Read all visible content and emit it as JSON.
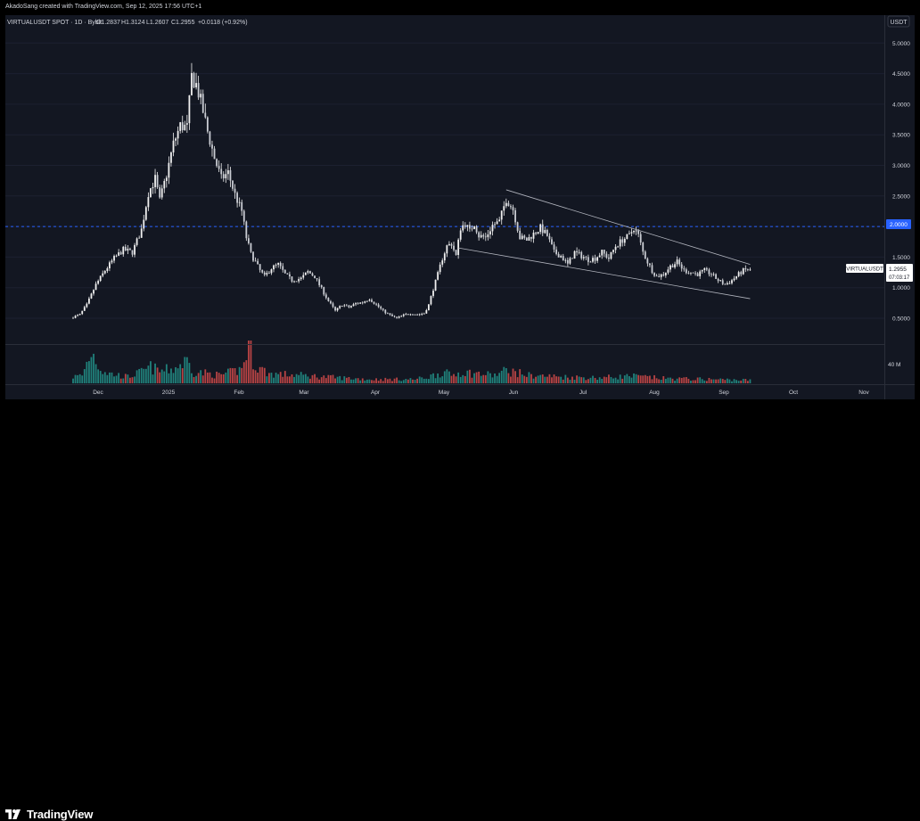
{
  "header": {
    "credit": "AkadoSang created with TradingView.com, Sep 12, 2025 17:56 UTC+1"
  },
  "footer": {
    "brand": "TradingView"
  },
  "chart_data": {
    "type": "candlestick",
    "symbol_line": "VIRTUALUSDT SPOT · 1D · Bybit",
    "ohlc": {
      "open": "O1.2837",
      "high": "H1.3124",
      "low": "L1.2607",
      "close": "C1.2955",
      "change": "+0.0118 (+0.92%)"
    },
    "currency": "USDT",
    "y_ticks": [
      "5.0000",
      "4.5000",
      "4.0000",
      "3.5000",
      "3.0000",
      "2.5000",
      "2.0000",
      "1.5000",
      "1.0000",
      "0.5000"
    ],
    "ylim": [
      0.3,
      5.3
    ],
    "x_ticks": [
      "Dec",
      "2025",
      "Feb",
      "Mar",
      "Apr",
      "May",
      "Jun",
      "Jul",
      "Aug",
      "Sep",
      "Oct",
      "Nov"
    ],
    "volume_tick": "40 M",
    "horizontal_level": {
      "value": 2.0,
      "label": "2.0000"
    },
    "last_price": {
      "symbol": "VIRTUALUSDT",
      "price": "1.2955",
      "countdown": "07:03:17"
    },
    "price_path": [
      [
        0,
        0.52
      ],
      [
        3,
        0.56
      ],
      [
        6,
        0.72
      ],
      [
        10,
        1.05
      ],
      [
        14,
        1.28
      ],
      [
        18,
        1.48
      ],
      [
        22,
        1.62
      ],
      [
        26,
        1.58
      ],
      [
        30,
        1.95
      ],
      [
        33,
        2.55
      ],
      [
        36,
        2.78
      ],
      [
        38,
        2.42
      ],
      [
        41,
        2.85
      ],
      [
        44,
        3.35
      ],
      [
        47,
        3.65
      ],
      [
        50,
        3.62
      ],
      [
        52,
        4.45
      ],
      [
        54,
        4.32
      ],
      [
        56,
        4.05
      ],
      [
        59,
        3.55
      ],
      [
        62,
        3.12
      ],
      [
        65,
        2.78
      ],
      [
        68,
        2.88
      ],
      [
        71,
        2.52
      ],
      [
        74,
        2.25
      ],
      [
        76,
        1.82
      ],
      [
        78,
        1.55
      ],
      [
        80,
        1.42
      ],
      [
        82,
        1.28
      ],
      [
        84,
        1.18
      ],
      [
        87,
        1.32
      ],
      [
        90,
        1.38
      ],
      [
        93,
        1.22
      ],
      [
        96,
        1.12
      ],
      [
        100,
        1.15
      ],
      [
        103,
        1.26
      ],
      [
        106,
        1.18
      ],
      [
        109,
        0.98
      ],
      [
        112,
        0.78
      ],
      [
        115,
        0.62
      ],
      [
        118,
        0.72
      ],
      [
        121,
        0.68
      ],
      [
        124,
        0.74
      ],
      [
        127,
        0.76
      ],
      [
        130,
        0.82
      ],
      [
        133,
        0.72
      ],
      [
        136,
        0.62
      ],
      [
        139,
        0.55
      ],
      [
        142,
        0.5
      ],
      [
        145,
        0.55
      ],
      [
        148,
        0.58
      ],
      [
        151,
        0.56
      ],
      [
        154,
        0.58
      ],
      [
        156,
        0.72
      ],
      [
        158,
        0.98
      ],
      [
        160,
        1.22
      ],
      [
        162,
        1.48
      ],
      [
        164,
        1.68
      ],
      [
        166,
        1.72
      ],
      [
        168,
        1.52
      ],
      [
        170,
        1.98
      ],
      [
        172,
        2.05
      ],
      [
        174,
        1.92
      ],
      [
        176,
        2.05
      ],
      [
        178,
        1.85
      ],
      [
        181,
        1.82
      ],
      [
        184,
        2.02
      ],
      [
        187,
        2.08
      ],
      [
        190,
        2.45
      ],
      [
        193,
        2.28
      ],
      [
        196,
        1.82
      ],
      [
        199,
        1.78
      ],
      [
        202,
        1.88
      ],
      [
        205,
        1.98
      ],
      [
        208,
        1.85
      ],
      [
        211,
        1.58
      ],
      [
        214,
        1.52
      ],
      [
        217,
        1.38
      ],
      [
        220,
        1.58
      ],
      [
        223,
        1.52
      ],
      [
        226,
        1.46
      ],
      [
        229,
        1.48
      ],
      [
        232,
        1.58
      ],
      [
        235,
        1.48
      ],
      [
        238,
        1.68
      ],
      [
        241,
        1.78
      ],
      [
        244,
        1.85
      ],
      [
        246,
        1.98
      ],
      [
        248,
        1.85
      ],
      [
        250,
        1.58
      ],
      [
        252,
        1.42
      ],
      [
        254,
        1.28
      ],
      [
        256,
        1.18
      ],
      [
        259,
        1.22
      ],
      [
        262,
        1.35
      ],
      [
        265,
        1.42
      ],
      [
        268,
        1.28
      ],
      [
        271,
        1.25
      ],
      [
        274,
        1.22
      ],
      [
        277,
        1.28
      ],
      [
        280,
        1.22
      ],
      [
        283,
        1.12
      ],
      [
        286,
        1.05
      ],
      [
        289,
        1.12
      ],
      [
        292,
        1.22
      ],
      [
        294,
        1.28
      ],
      [
        296,
        1.3
      ],
      [
        297,
        1.2955
      ]
    ],
    "volume_profile": [
      [
        0,
        8
      ],
      [
        4,
        10
      ],
      [
        6,
        25
      ],
      [
        8,
        40
      ],
      [
        10,
        30
      ],
      [
        12,
        18
      ],
      [
        16,
        12
      ],
      [
        24,
        8
      ],
      [
        30,
        14
      ],
      [
        34,
        20
      ],
      [
        38,
        15
      ],
      [
        44,
        18
      ],
      [
        50,
        28
      ],
      [
        53,
        14
      ],
      [
        60,
        12
      ],
      [
        64,
        10
      ],
      [
        70,
        14
      ],
      [
        74,
        18
      ],
      [
        77,
        48
      ],
      [
        80,
        22
      ],
      [
        86,
        12
      ],
      [
        100,
        10
      ],
      [
        110,
        8
      ],
      [
        130,
        5
      ],
      [
        150,
        5
      ],
      [
        156,
        8
      ],
      [
        162,
        14
      ],
      [
        166,
        10
      ],
      [
        170,
        14
      ],
      [
        185,
        10
      ],
      [
        190,
        16
      ],
      [
        200,
        10
      ],
      [
        215,
        8
      ],
      [
        230,
        7
      ],
      [
        245,
        9
      ],
      [
        250,
        8
      ],
      [
        260,
        6
      ],
      [
        280,
        5
      ],
      [
        297,
        4
      ]
    ],
    "series": [
      {
        "name": "Descending channel upper",
        "from": [
          190,
          2.6
        ],
        "to": [
          297,
          1.38
        ]
      },
      {
        "name": "Descending channel lower",
        "from": [
          169,
          1.65
        ],
        "to": [
          297,
          0.82
        ]
      }
    ],
    "colors": {
      "up": "#26a69a",
      "down": "#ef5350",
      "candle": "#f0f0f0",
      "level": "#2962ff",
      "line": "#b2b5be",
      "axis_text": "#d1d4dc",
      "background": "#131722"
    }
  }
}
